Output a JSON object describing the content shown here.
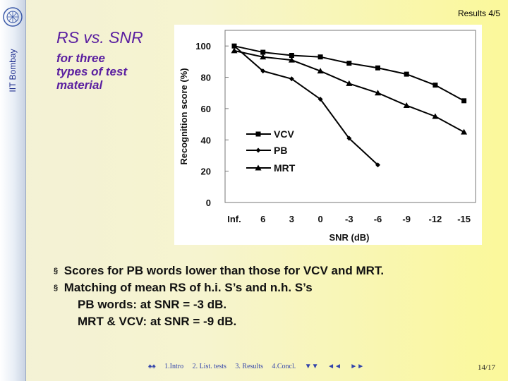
{
  "sidebar": {
    "institution": "IIT Bombay"
  },
  "header": {
    "slide_indicator": "Results 4/5"
  },
  "slide": {
    "title": "RS vs. SNR",
    "subtitle_lines": [
      "for three",
      "types of test",
      "material"
    ]
  },
  "chart_data": {
    "type": "line",
    "ylabel": "Recognition score (%)",
    "xlabel": "SNR (dB)",
    "categories": [
      "Inf.",
      "6",
      "3",
      "0",
      "-3",
      "-6",
      "-9",
      "-12",
      "-15"
    ],
    "y_ticks": [
      "0",
      "20",
      "40",
      "60",
      "80",
      "100"
    ],
    "ylim": [
      0,
      110
    ],
    "grid": false,
    "legend_placement": "middle-left",
    "series": [
      {
        "name": "VCV",
        "marker": "square",
        "values": [
          100,
          96,
          94,
          93,
          89,
          86,
          82,
          75,
          65
        ]
      },
      {
        "name": "PB",
        "marker": "diamond",
        "values": [
          100,
          84,
          79,
          66,
          41,
          24,
          null,
          null,
          null
        ]
      },
      {
        "name": "MRT",
        "marker": "triangle",
        "values": [
          97,
          93,
          91,
          84,
          76,
          70,
          62,
          55,
          45
        ]
      }
    ]
  },
  "bullets": [
    {
      "marker": "§",
      "text": "Scores for PB words lower than those for VCV and MRT."
    },
    {
      "marker": "§",
      "text": "Matching of mean RS of h.i. S’s and n.h. S’s"
    }
  ],
  "sub_bullets": [
    "PB words: at SNR = -3 dB.",
    "MRT & VCV: at SNR = -9 dB."
  ],
  "footer": {
    "nav_start": "♠♠",
    "links": [
      "1.Intro",
      "2. List. tests",
      "3. Results",
      "4.Concl."
    ],
    "nav_down": "▼▼",
    "nav_prev": "◄◄",
    "nav_next": "►►",
    "page": "14/17"
  }
}
